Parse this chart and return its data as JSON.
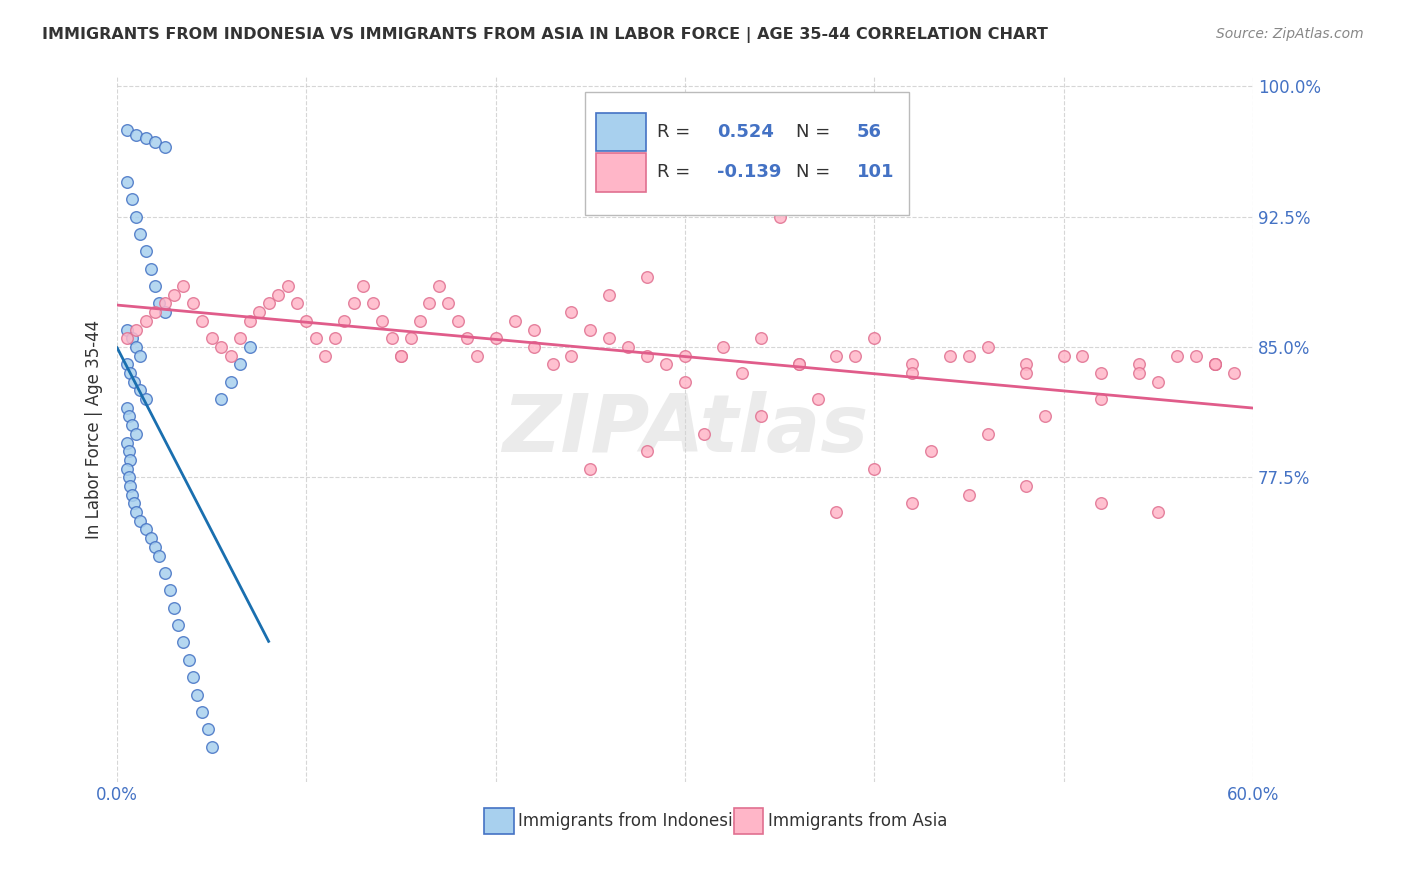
{
  "title": "IMMIGRANTS FROM INDONESIA VS IMMIGRANTS FROM ASIA IN LABOR FORCE | AGE 35-44 CORRELATION CHART",
  "source": "Source: ZipAtlas.com",
  "ylabel": "In Labor Force | Age 35-44",
  "xlim": [
    0.0,
    0.6
  ],
  "ylim": [
    0.6,
    1.005
  ],
  "yticks": [
    0.775,
    0.85,
    0.925,
    1.0
  ],
  "yticklabels": [
    "77.5%",
    "85.0%",
    "92.5%",
    "100.0%"
  ],
  "blue_color": "#a8d0ee",
  "blue_edge_color": "#4472c4",
  "pink_color": "#ffb6c8",
  "pink_edge_color": "#e07090",
  "blue_line_color": "#1a6faf",
  "pink_line_color": "#e05c8a",
  "watermark": "ZIPAtlas",
  "indonesia_scatter_x": [
    0.005,
    0.01,
    0.015,
    0.02,
    0.025,
    0.005,
    0.008,
    0.01,
    0.012,
    0.015,
    0.018,
    0.02,
    0.022,
    0.025,
    0.005,
    0.008,
    0.01,
    0.012,
    0.005,
    0.007,
    0.009,
    0.012,
    0.015,
    0.005,
    0.006,
    0.008,
    0.01,
    0.005,
    0.006,
    0.007,
    0.005,
    0.006,
    0.007,
    0.008,
    0.009,
    0.01,
    0.012,
    0.015,
    0.018,
    0.02,
    0.022,
    0.025,
    0.028,
    0.03,
    0.032,
    0.035,
    0.038,
    0.04,
    0.042,
    0.045,
    0.048,
    0.05,
    0.055,
    0.06,
    0.065,
    0.07
  ],
  "indonesia_scatter_y": [
    0.975,
    0.972,
    0.97,
    0.968,
    0.965,
    0.945,
    0.935,
    0.925,
    0.915,
    0.905,
    0.895,
    0.885,
    0.875,
    0.87,
    0.86,
    0.855,
    0.85,
    0.845,
    0.84,
    0.835,
    0.83,
    0.825,
    0.82,
    0.815,
    0.81,
    0.805,
    0.8,
    0.795,
    0.79,
    0.785,
    0.78,
    0.775,
    0.77,
    0.765,
    0.76,
    0.755,
    0.75,
    0.745,
    0.74,
    0.735,
    0.73,
    0.72,
    0.71,
    0.7,
    0.69,
    0.68,
    0.67,
    0.66,
    0.65,
    0.64,
    0.63,
    0.62,
    0.82,
    0.83,
    0.84,
    0.85
  ],
  "asia_scatter_x": [
    0.005,
    0.01,
    0.015,
    0.02,
    0.025,
    0.03,
    0.035,
    0.04,
    0.045,
    0.05,
    0.055,
    0.06,
    0.065,
    0.07,
    0.075,
    0.08,
    0.085,
    0.09,
    0.095,
    0.1,
    0.105,
    0.11,
    0.115,
    0.12,
    0.125,
    0.13,
    0.135,
    0.14,
    0.145,
    0.15,
    0.155,
    0.16,
    0.165,
    0.17,
    0.175,
    0.18,
    0.185,
    0.19,
    0.2,
    0.21,
    0.22,
    0.23,
    0.24,
    0.25,
    0.26,
    0.27,
    0.28,
    0.29,
    0.3,
    0.32,
    0.34,
    0.36,
    0.38,
    0.4,
    0.42,
    0.44,
    0.46,
    0.48,
    0.5,
    0.52,
    0.54,
    0.56,
    0.58,
    0.3,
    0.32,
    0.35,
    0.38,
    0.42,
    0.45,
    0.48,
    0.52,
    0.55,
    0.58,
    0.25,
    0.28,
    0.31,
    0.34,
    0.37,
    0.4,
    0.43,
    0.46,
    0.49,
    0.52,
    0.55,
    0.58,
    0.22,
    0.24,
    0.26,
    0.28,
    0.3,
    0.33,
    0.36,
    0.39,
    0.42,
    0.45,
    0.48,
    0.51,
    0.54,
    0.57,
    0.59,
    0.15
  ],
  "asia_scatter_y": [
    0.855,
    0.86,
    0.865,
    0.87,
    0.875,
    0.88,
    0.885,
    0.875,
    0.865,
    0.855,
    0.85,
    0.845,
    0.855,
    0.865,
    0.87,
    0.875,
    0.88,
    0.885,
    0.875,
    0.865,
    0.855,
    0.845,
    0.855,
    0.865,
    0.875,
    0.885,
    0.875,
    0.865,
    0.855,
    0.845,
    0.855,
    0.865,
    0.875,
    0.885,
    0.875,
    0.865,
    0.855,
    0.845,
    0.855,
    0.865,
    0.85,
    0.84,
    0.845,
    0.86,
    0.855,
    0.85,
    0.845,
    0.84,
    0.83,
    0.85,
    0.855,
    0.84,
    0.845,
    0.855,
    0.84,
    0.845,
    0.85,
    0.84,
    0.845,
    0.835,
    0.84,
    0.845,
    0.84,
    0.935,
    0.93,
    0.925,
    0.755,
    0.76,
    0.765,
    0.77,
    0.76,
    0.755,
    0.84,
    0.78,
    0.79,
    0.8,
    0.81,
    0.82,
    0.78,
    0.79,
    0.8,
    0.81,
    0.82,
    0.83,
    0.84,
    0.86,
    0.87,
    0.88,
    0.89,
    0.845,
    0.835,
    0.84,
    0.845,
    0.835,
    0.845,
    0.835,
    0.845,
    0.835,
    0.845,
    0.835,
    0.845
  ]
}
